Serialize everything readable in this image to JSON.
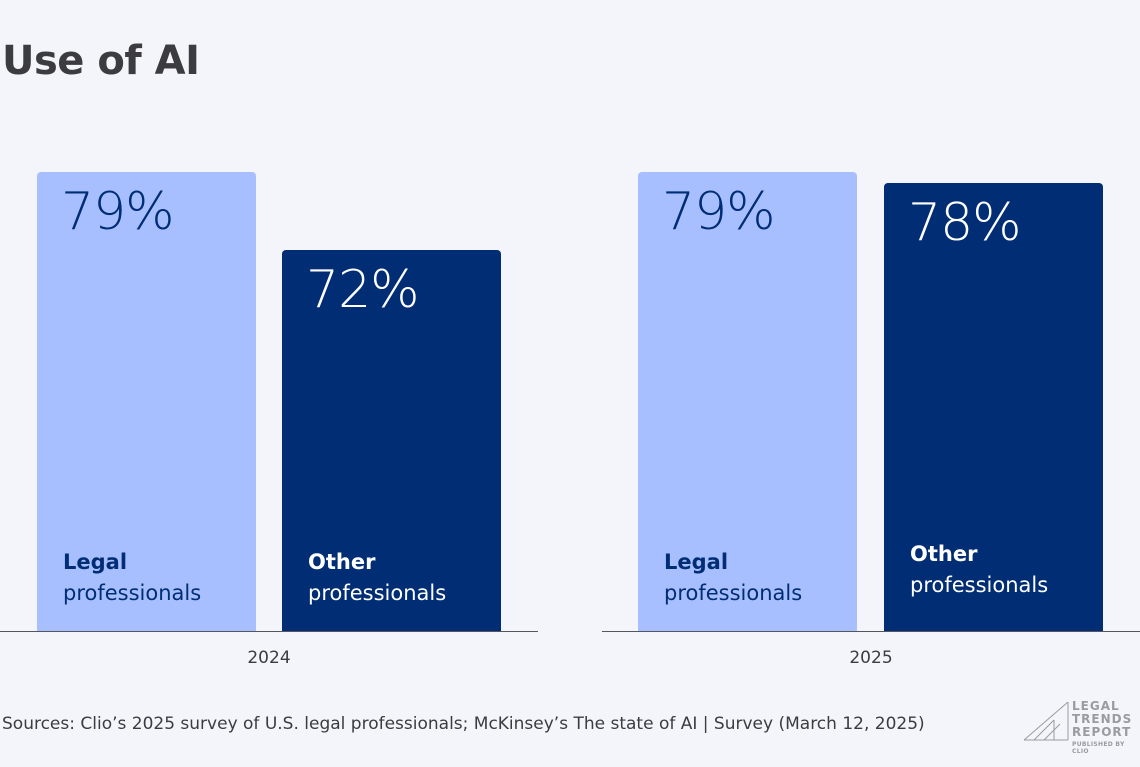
{
  "chart_data": {
    "type": "bar",
    "title": "Use of AI",
    "categories": [
      "2024",
      "2025"
    ],
    "series": [
      {
        "name": "Legal professionals",
        "name_bold": "Legal",
        "name_rest": "professionals",
        "values": [
          79,
          79
        ],
        "color": "#a8bfff",
        "text_color": "#002d74"
      },
      {
        "name": "Other professionals",
        "name_bold": "Other",
        "name_rest": "professionals",
        "values": [
          72,
          78
        ],
        "color": "#002d74",
        "text_color": "#ffffff"
      }
    ],
    "data_labels": [
      [
        "79%",
        "79%"
      ],
      [
        "72%",
        "78%"
      ]
    ],
    "ylim": [
      38,
      80
    ],
    "grid": false,
    "legend": "inside-bars"
  },
  "source": "Sources: Clio’s 2025 survey of U.S. legal professionals; McKinsey’s The state of AI | Survey (March 12, 2025)",
  "logo": {
    "lines": [
      "LEGAL",
      "TRENDS",
      "REPORT"
    ],
    "subtitle": "PUBLISHED BY CLIO"
  }
}
